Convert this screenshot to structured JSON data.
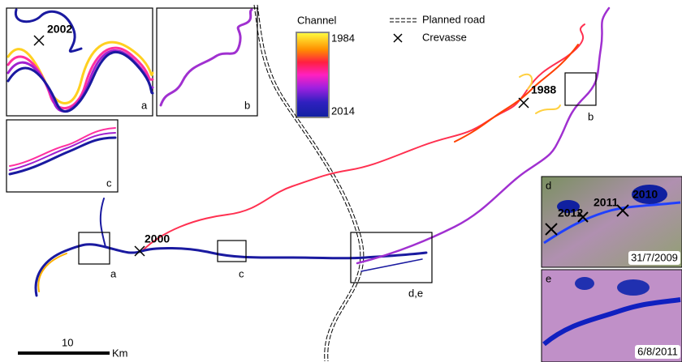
{
  "legend": {
    "title": "Channel",
    "top_label": "1984",
    "bottom_label": "2014",
    "road": "Planned road",
    "crevasse": "Crevasse"
  },
  "inset_panels": [
    {
      "label": "a",
      "annotation": "2002"
    },
    {
      "label": "b"
    },
    {
      "label": "c"
    },
    {
      "label": "d",
      "annotations": [
        "2012",
        "2011",
        "2010"
      ],
      "date": "31/7/2009"
    },
    {
      "label": "e",
      "date": "6/8/2011"
    }
  ],
  "main_map": {
    "box_labels": [
      "a",
      "c",
      "d,e",
      "b"
    ],
    "annotations": [
      "2000",
      "1988"
    ]
  },
  "scale_bar": {
    "value": "10",
    "unit": "Km"
  }
}
